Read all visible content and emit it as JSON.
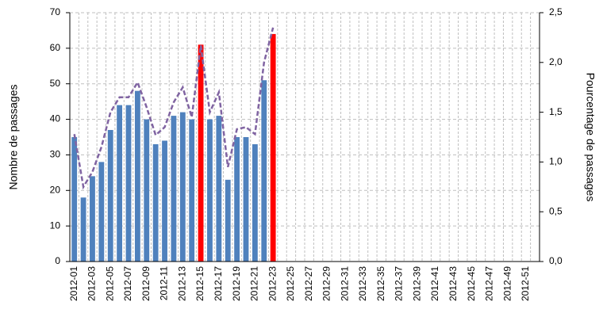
{
  "chart_data": {
    "type": "bar-line",
    "y_label": "Nombre de passages",
    "y2_label": "Pourcentage de passages",
    "categories": [
      "2012-01",
      null,
      "2012-03",
      null,
      "2012-05",
      null,
      "2012-07",
      null,
      "2012-09",
      null,
      "2012-11",
      null,
      "2012-13",
      null,
      "2012-15",
      null,
      "2012-17",
      null,
      "2012-19",
      null,
      "2012-21",
      null,
      "2012-23",
      null,
      "2012-25",
      null,
      "2012-27",
      null,
      "2012-29",
      null,
      "2012-31",
      null,
      "2012-33",
      null,
      "2012-35",
      null,
      "2012-37",
      null,
      "2012-39",
      null,
      "2012-41",
      null,
      "2012-43",
      null,
      "2012-45",
      null,
      "2012-47",
      null,
      "2012-49",
      null,
      "2012-51",
      null
    ],
    "series": [
      {
        "type": "bar",
        "color": "#4f81bd",
        "colors": [
          "#4f81bd",
          "#4f81bd",
          "#4f81bd",
          "#4f81bd",
          "#4f81bd",
          "#4f81bd",
          "#4f81bd",
          "#4f81bd",
          "#4f81bd",
          "#4f81bd",
          "#4f81bd",
          "#4f81bd",
          "#4f81bd",
          "#4f81bd",
          "#ff0000",
          "#4f81bd",
          "#4f81bd",
          "#4f81bd",
          "#4f81bd",
          "#4f81bd",
          "#4f81bd",
          "#4f81bd",
          "#ff0000",
          null,
          null,
          null,
          null,
          null,
          null,
          null,
          null,
          null,
          null,
          null,
          null,
          null,
          null,
          null,
          null,
          null,
          null,
          null,
          null,
          null,
          null,
          null,
          null,
          null,
          null,
          null,
          null,
          null
        ],
        "values": [
          35,
          18,
          24,
          28,
          37,
          44,
          44,
          48,
          40,
          33,
          34,
          41,
          42,
          40,
          61,
          40,
          41,
          23,
          35,
          35,
          33,
          51,
          64,
          null,
          null,
          null,
          null,
          null,
          null,
          null,
          null,
          null,
          null,
          null,
          null,
          null,
          null,
          null,
          null,
          null,
          null,
          null,
          null,
          null,
          null,
          null,
          null,
          null,
          null,
          null,
          null,
          null
        ]
      },
      {
        "type": "line",
        "axis": "y2",
        "color": "#8064a2",
        "dashed": true,
        "values": [
          1.28,
          0.75,
          0.9,
          1.15,
          1.5,
          1.65,
          1.65,
          1.8,
          1.55,
          1.27,
          1.35,
          1.6,
          1.75,
          1.45,
          2.17,
          1.5,
          1.7,
          0.95,
          1.33,
          1.35,
          1.28,
          2.0,
          2.35,
          null,
          null,
          null,
          null,
          null,
          null,
          null,
          null,
          null,
          null,
          null,
          null,
          null,
          null,
          null,
          null,
          null,
          null,
          null,
          null,
          null,
          null,
          null,
          null,
          null,
          null,
          null,
          null,
          null
        ]
      }
    ],
    "ylim": [
      0,
      70
    ],
    "yticks": [
      0,
      10,
      20,
      30,
      40,
      50,
      60,
      70
    ],
    "y2lim": [
      0,
      2.5
    ],
    "y2ticks": [
      {
        "value": 0,
        "label": "0,0"
      },
      {
        "value": 0.5,
        "label": "0,5"
      },
      {
        "value": 1,
        "label": "1,0"
      },
      {
        "value": 1.5,
        "label": "1,5"
      },
      {
        "value": 2,
        "label": "2,0"
      },
      {
        "value": 2.5,
        "label": "2,5"
      }
    ],
    "grid": true
  }
}
